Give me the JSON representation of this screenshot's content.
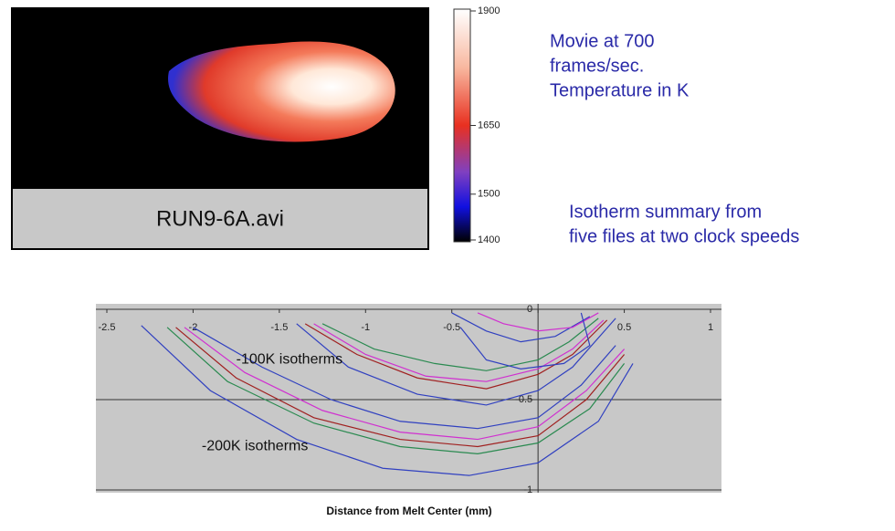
{
  "thermal_image": {
    "label": "RUN9-6A.avi"
  },
  "colorbar": {
    "lim": [
      1400,
      1900
    ],
    "ticks": [
      1400,
      1500,
      1650,
      1900
    ]
  },
  "notes": {
    "movie": [
      "Movie at 700",
      "frames/sec.",
      "Temperature in K"
    ],
    "summary": [
      "Isotherm summary from",
      "five files at two clock speeds"
    ]
  },
  "chart_data": {
    "type": "line",
    "xlabel": "Distance from Melt Center (mm)",
    "xlim": [
      -2.5,
      1
    ],
    "ylim": [
      -1,
      0
    ],
    "xticks": [
      -2.5,
      -2,
      -1.5,
      -1,
      -0.5,
      0,
      0.5,
      1
    ],
    "yticks": [
      -1,
      -0.5,
      0
    ],
    "grid": true,
    "annotations": [
      {
        "text": "-100K isotherms",
        "x": -1.75,
        "y": -0.28
      },
      {
        "text": "-200K isotherms",
        "x": -1.95,
        "y": -0.76
      }
    ],
    "series": [
      {
        "color": "#3040c0",
        "x": [
          -2.3,
          -1.9,
          -1.4,
          -0.9,
          -0.4,
          0,
          0.35,
          0.55
        ],
        "values": [
          -0.09,
          -0.45,
          -0.72,
          -0.88,
          -0.92,
          -0.85,
          -0.62,
          -0.3
        ]
      },
      {
        "color": "#2a8a50",
        "x": [
          -2.15,
          -1.8,
          -1.3,
          -0.8,
          -0.35,
          0,
          0.3,
          0.5
        ],
        "values": [
          -0.1,
          -0.4,
          -0.63,
          -0.76,
          -0.8,
          -0.74,
          -0.55,
          -0.3
        ]
      },
      {
        "color": "#a02020",
        "x": [
          -2.1,
          -1.75,
          -1.3,
          -0.8,
          -0.35,
          0,
          0.28,
          0.5
        ],
        "values": [
          -0.1,
          -0.38,
          -0.6,
          -0.72,
          -0.76,
          -0.7,
          -0.5,
          -0.25
        ]
      },
      {
        "color": "#d030d0",
        "x": [
          -2.05,
          -1.7,
          -1.25,
          -0.8,
          -0.35,
          0,
          0.28,
          0.5
        ],
        "values": [
          -0.1,
          -0.35,
          -0.56,
          -0.68,
          -0.72,
          -0.65,
          -0.45,
          -0.22
        ]
      },
      {
        "color": "#3040c0",
        "x": [
          -2.0,
          -1.6,
          -1.2,
          -0.8,
          -0.35,
          0,
          0.25,
          0.45
        ],
        "values": [
          -0.1,
          -0.32,
          -0.5,
          -0.62,
          -0.66,
          -0.6,
          -0.42,
          -0.2
        ]
      },
      {
        "color": "#3040c0",
        "x": [
          -1.4,
          -1.1,
          -0.7,
          -0.3,
          0,
          0.2,
          0.45
        ],
        "values": [
          -0.08,
          -0.32,
          -0.47,
          -0.53,
          -0.45,
          -0.32,
          -0.05
        ]
      },
      {
        "color": "#a02020",
        "x": [
          -1.35,
          -1.05,
          -0.7,
          -0.3,
          0,
          0.2,
          0.4
        ],
        "values": [
          -0.08,
          -0.25,
          -0.38,
          -0.44,
          -0.36,
          -0.25,
          -0.06
        ]
      },
      {
        "color": "#d030d0",
        "x": [
          -1.3,
          -1.0,
          -0.65,
          -0.3,
          0,
          0.2,
          0.38
        ],
        "values": [
          -0.08,
          -0.25,
          -0.37,
          -0.4,
          -0.33,
          -0.22,
          -0.06
        ]
      },
      {
        "color": "#2a8a50",
        "x": [
          -1.25,
          -0.95,
          -0.6,
          -0.3,
          0,
          0.18,
          0.35
        ],
        "values": [
          -0.08,
          -0.22,
          -0.3,
          -0.34,
          -0.28,
          -0.18,
          -0.05
        ]
      },
      {
        "color": "#3040c0",
        "x": [
          -0.5,
          -0.3,
          -0.1,
          0.1,
          0.3
        ],
        "values": [
          -0.02,
          -0.12,
          -0.18,
          -0.15,
          -0.04
        ]
      },
      {
        "color": "#d030d0",
        "x": [
          -0.35,
          -0.2,
          0,
          0.2,
          0.35
        ],
        "values": [
          -0.02,
          -0.08,
          -0.12,
          -0.1,
          -0.02
        ]
      },
      {
        "color": "#3040c0",
        "x": [
          -0.45,
          -0.3,
          -0.1,
          0.15,
          0.3,
          0.25
        ],
        "values": [
          -0.1,
          -0.28,
          -0.33,
          -0.3,
          -0.2,
          -0.02
        ]
      }
    ]
  }
}
